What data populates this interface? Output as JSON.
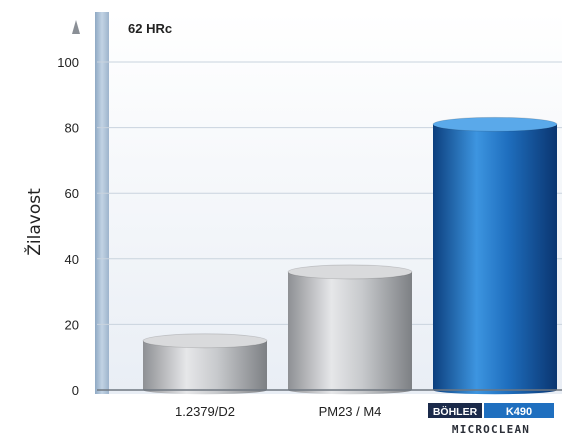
{
  "chart_data": {
    "type": "bar",
    "annotation": "62 HRc",
    "ylabel": "Žilavost",
    "xlabel": "",
    "ylim": [
      0,
      100
    ],
    "yticks": [
      0,
      20,
      40,
      60,
      80,
      100
    ],
    "grid": true,
    "categories": [
      "1.2379/D2",
      "PM23 / M4",
      "BÖHLER K490 MICROCLEAN"
    ],
    "values": [
      15,
      36,
      81
    ],
    "logo": {
      "brand": "BÖHLER",
      "model": "K490",
      "line": "MICROCLEAN"
    },
    "colors": {
      "bar_standard": "#b9bbbe",
      "bar_highlight": "#1f6fbf",
      "axis_band": "#a9bfd6",
      "plot_bg": "#eef2f7",
      "logo_dark": "#1b2a4a"
    }
  }
}
